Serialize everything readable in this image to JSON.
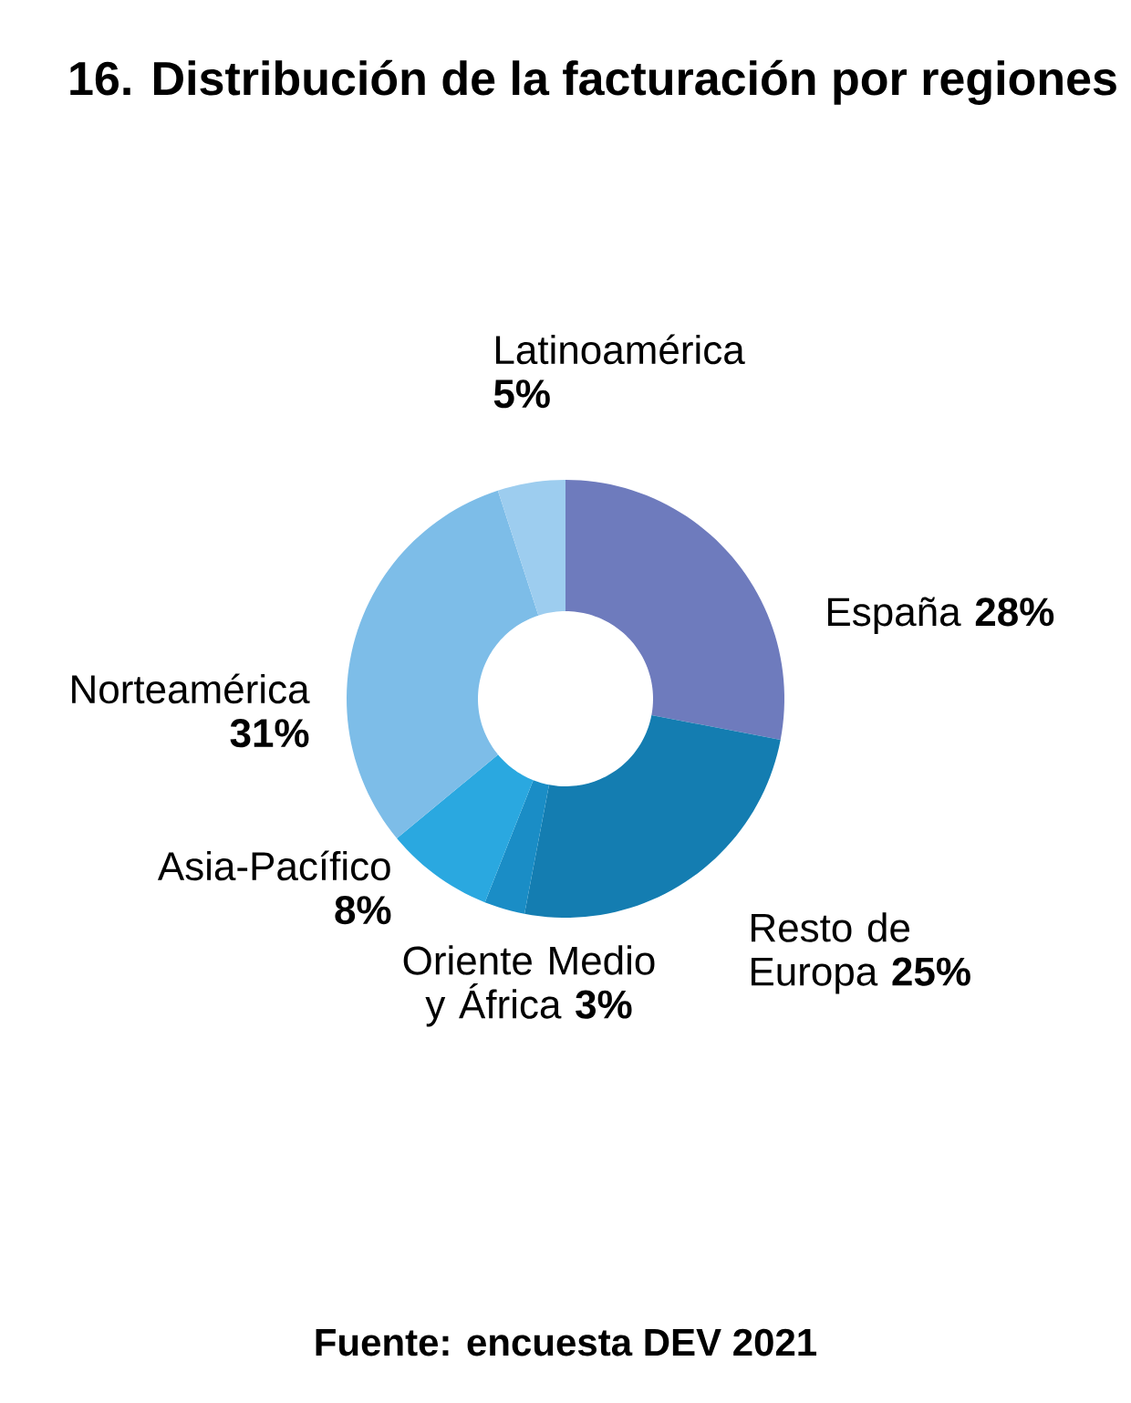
{
  "chart_data": {
    "type": "donut",
    "title": "16. Distribución de la facturación por regiones",
    "categories": [
      "España",
      "Resto de Europa",
      "Oriente Medio y África",
      "Asia-Pacífico",
      "Norteamérica",
      "Latinoamérica"
    ],
    "values": [
      28,
      25,
      3,
      8,
      31,
      5
    ],
    "colors": [
      "#6e7bbd",
      "#147db1",
      "#1a8dc6",
      "#2aa8e0",
      "#7dbde8",
      "#9dcdef"
    ],
    "value_labels": [
      "28%",
      "25%",
      "3%",
      "8%",
      "31%",
      "5%"
    ],
    "annotations": [
      "Fuente: encuesta DEV 2021"
    ]
  }
}
